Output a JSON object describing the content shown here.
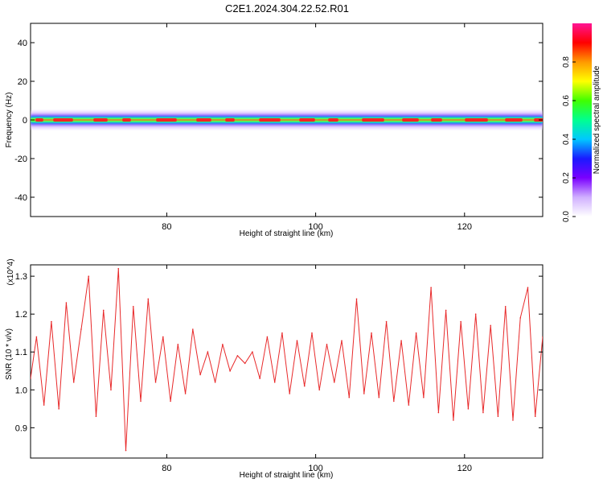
{
  "title": "C2E1.2024.304.22.52.R01",
  "chart_data": [
    {
      "type": "heatmap",
      "xlabel": "Height of straight line (km)",
      "ylabel": "Frequency (Hz)",
      "xlim": [
        61.7,
        130.5
      ],
      "ylim": [
        -50,
        50
      ],
      "xticks": [
        80,
        100,
        120
      ],
      "yticks": [
        40,
        20,
        0,
        -20,
        -40
      ],
      "xtick_labels": [
        "80",
        "100",
        "120"
      ],
      "ytick_labels": [
        "40",
        "20",
        "0",
        "-20",
        "-40"
      ],
      "band_center_hz": 0,
      "band_halfwidth_hz": 3,
      "colorbar": {
        "label": "Normalized spectral amplitude",
        "range": [
          0,
          1
        ],
        "ticks": [
          0.0,
          0.2,
          0.4,
          0.6,
          0.8
        ],
        "tick_labels": [
          "0.0",
          "0.2",
          "0.4",
          "0.6",
          "0.8"
        ],
        "colors": [
          "#ffffff",
          "#d0b0ff",
          "#7a00ff",
          "#1a1aff",
          "#00c8ff",
          "#00ff90",
          "#40ff00",
          "#ffff00",
          "#ff9900",
          "#ff0000",
          "#ff1493"
        ]
      }
    },
    {
      "type": "line",
      "xlabel": "Height of straight line (km)",
      "ylabel": "SNR (10 * v/v)",
      "y_scale_label": "(x10^4)",
      "xlim": [
        61.7,
        130.5
      ],
      "ylim": [
        0.82,
        1.33
      ],
      "xticks": [
        80,
        100,
        120
      ],
      "yticks": [
        0.9,
        1.0,
        1.1,
        1.2,
        1.3
      ],
      "xtick_labels": [
        "80",
        "100",
        "120"
      ],
      "ytick_labels": [
        "0.9",
        "1.0",
        "1.1",
        "1.2",
        "1.3"
      ],
      "series": [
        {
          "color": "#e8292a",
          "x": [
            61.7,
            62.5,
            63.5,
            64.5,
            65.5,
            66.5,
            67.5,
            68.5,
            69.5,
            70.5,
            71.5,
            72.5,
            73.5,
            74.5,
            75.5,
            76.5,
            77.5,
            78.5,
            79.5,
            80.5,
            81.5,
            82.5,
            83.5,
            84.5,
            85.5,
            86.5,
            87.5,
            88.5,
            89.5,
            90.5,
            91.5,
            92.5,
            93.5,
            94.5,
            95.5,
            96.5,
            97.5,
            98.5,
            99.5,
            100.5,
            101.5,
            102.5,
            103.5,
            104.5,
            105.5,
            106.5,
            107.5,
            108.5,
            109.5,
            110.5,
            111.5,
            112.5,
            113.5,
            114.5,
            115.5,
            116.5,
            117.5,
            118.5,
            119.5,
            120.5,
            121.5,
            122.5,
            123.5,
            124.5,
            125.5,
            126.5,
            127.5,
            128.5,
            129.5,
            130.5
          ],
          "y": [
            1.03,
            1.14,
            0.96,
            1.18,
            0.95,
            1.23,
            1.02,
            1.16,
            1.3,
            0.93,
            1.21,
            1.0,
            1.32,
            0.84,
            1.22,
            0.97,
            1.24,
            1.02,
            1.14,
            0.97,
            1.12,
            0.99,
            1.16,
            1.04,
            1.1,
            1.02,
            1.12,
            1.05,
            1.09,
            1.07,
            1.1,
            1.03,
            1.14,
            1.02,
            1.15,
            0.99,
            1.13,
            1.01,
            1.15,
            1.0,
            1.12,
            1.02,
            1.13,
            0.98,
            1.24,
            0.99,
            1.15,
            0.98,
            1.18,
            0.97,
            1.13,
            0.96,
            1.15,
            0.98,
            1.27,
            0.94,
            1.21,
            0.92,
            1.18,
            0.95,
            1.2,
            0.94,
            1.17,
            0.93,
            1.22,
            0.92,
            1.19,
            1.27,
            0.93,
            1.14
          ]
        }
      ]
    }
  ]
}
